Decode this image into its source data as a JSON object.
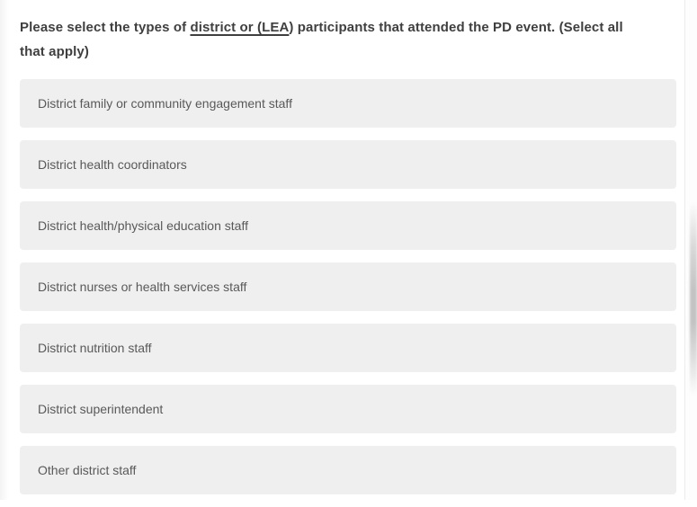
{
  "question": {
    "prefix": "Please select the types of ",
    "underlined": "district or (LEA",
    "suffix": ") participants that attended the PD event. (Select all that apply)"
  },
  "options": [
    {
      "label": "District family or community engagement staff"
    },
    {
      "label": "District health coordinators"
    },
    {
      "label": "District health/physical education staff"
    },
    {
      "label": "District nurses or health services staff"
    },
    {
      "label": "District nutrition staff"
    },
    {
      "label": "District superintendent"
    },
    {
      "label": "Other district staff"
    }
  ],
  "colors": {
    "page_bg": "#ffffff",
    "title_text": "#3f3f3f",
    "option_bg": "#efefef",
    "option_text": "#595959",
    "scrollbar_thumb": "#b9b9b9"
  }
}
